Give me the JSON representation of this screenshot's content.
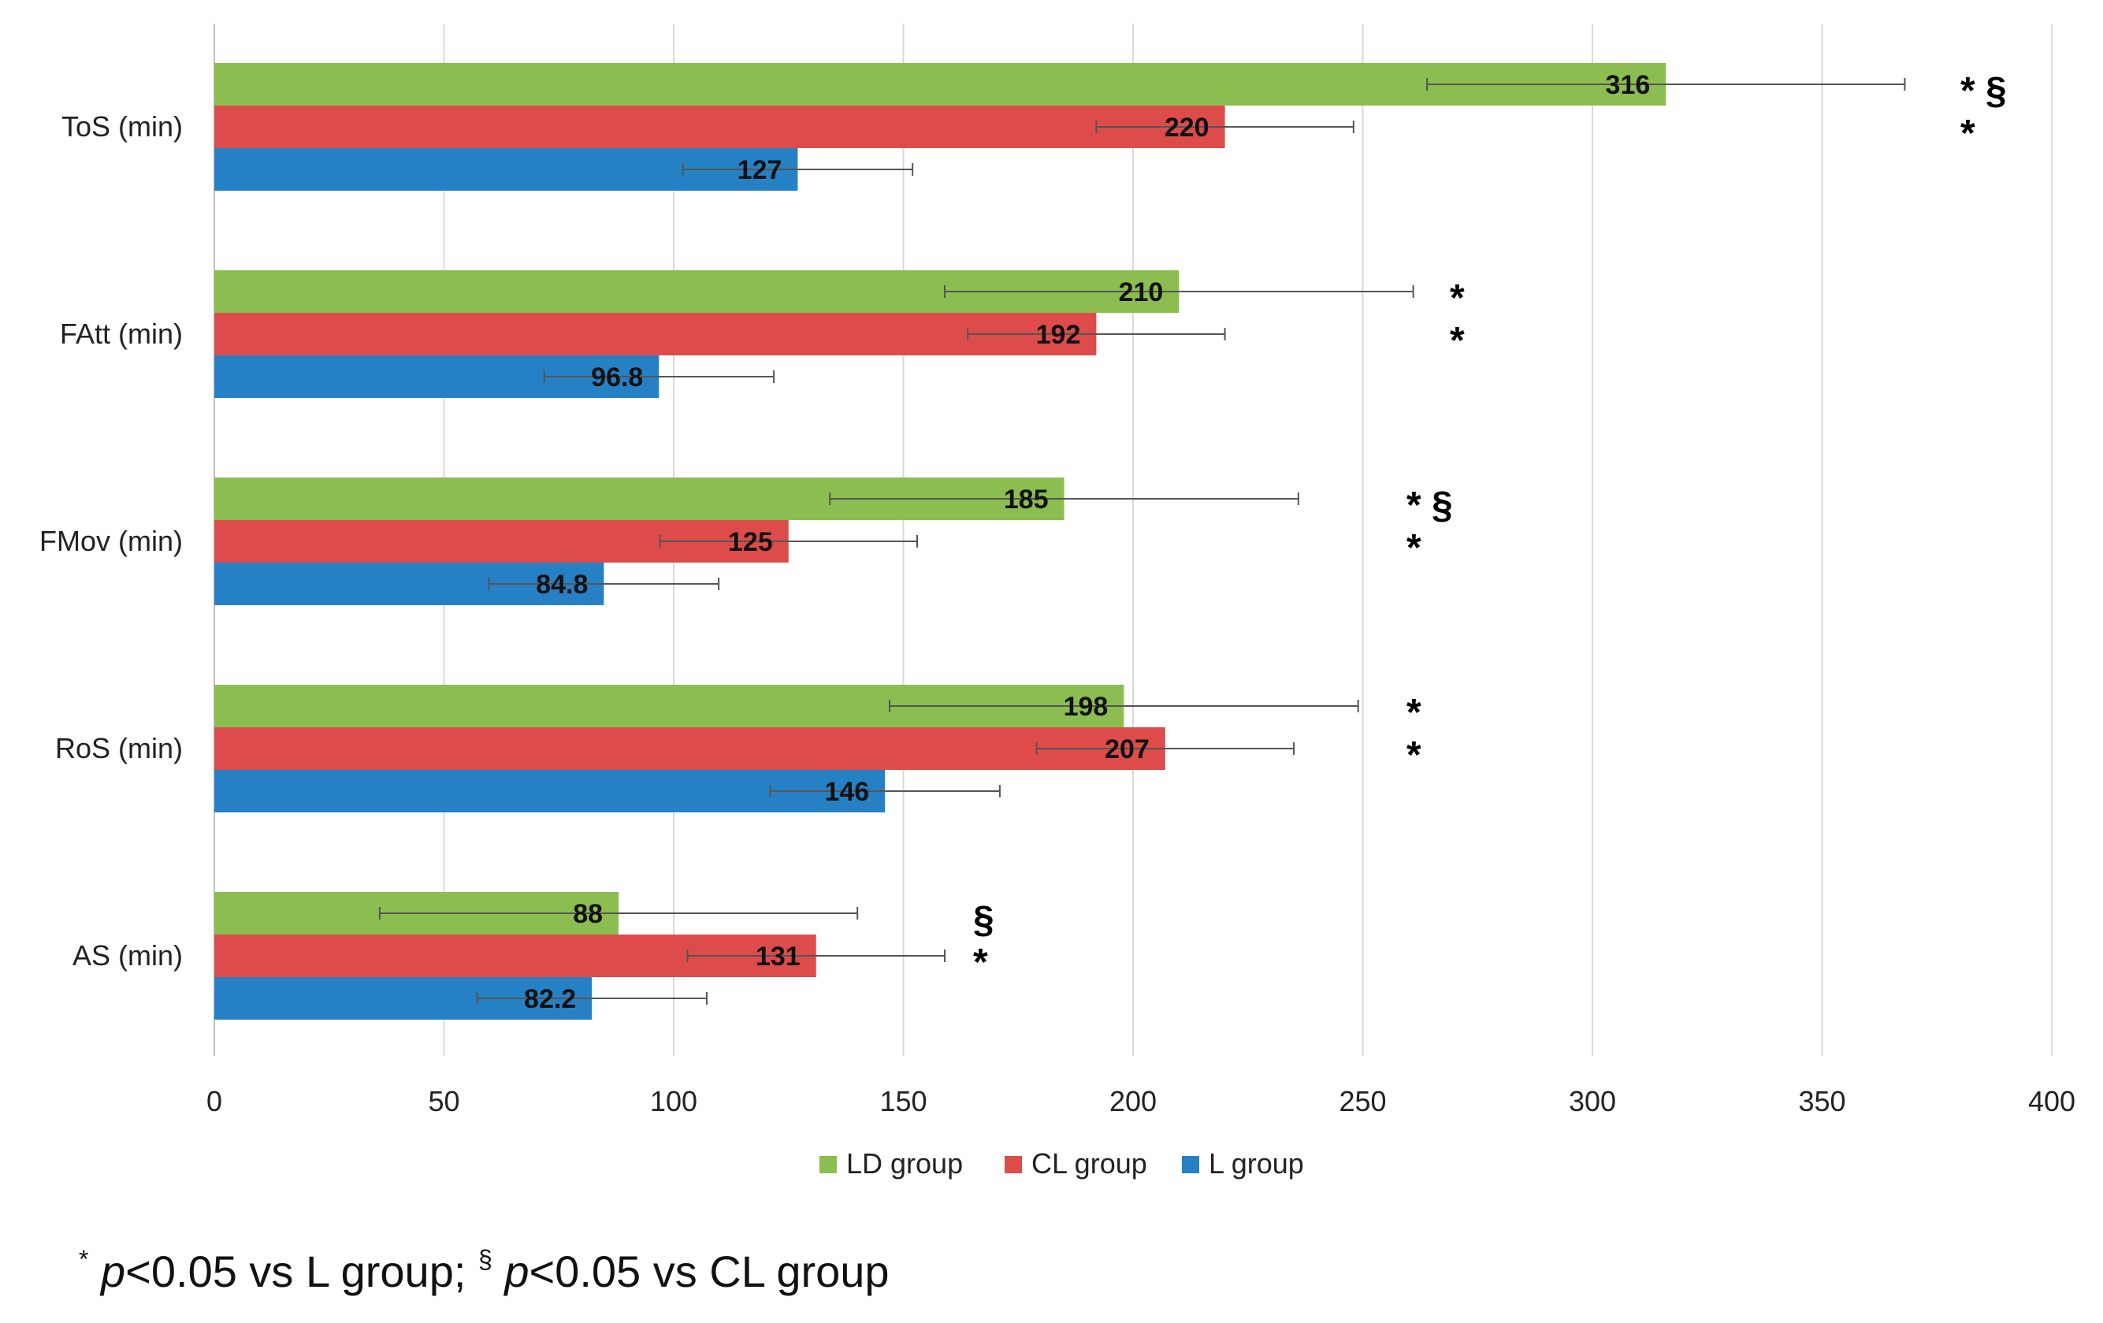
{
  "chart_data": {
    "type": "bar",
    "orientation": "horizontal",
    "categories": [
      "ToS (min)",
      "FAtt (min)",
      "FMov (min)",
      "RoS (min)",
      "AS (min)"
    ],
    "series": [
      {
        "name": "LD group",
        "color": "#8cbd50",
        "values": [
          316,
          210,
          185,
          198,
          88
        ],
        "value_labels": [
          "316",
          "210",
          "185",
          "198",
          "88"
        ],
        "error": [
          52,
          51,
          51,
          51,
          52
        ],
        "significance": [
          "* §",
          "*",
          "* §",
          "*",
          "§"
        ]
      },
      {
        "name": "CL group",
        "color": "#de4b4b",
        "values": [
          220,
          192,
          125,
          207,
          131
        ],
        "value_labels": [
          "220",
          "192",
          "125",
          "207",
          "131"
        ],
        "error": [
          28,
          28,
          28,
          28,
          28
        ],
        "significance": [
          "*",
          "*",
          "*",
          "*",
          "*"
        ]
      },
      {
        "name": "L group",
        "color": "#2681c4",
        "values": [
          127,
          96.8,
          84.8,
          146,
          82.2
        ],
        "value_labels": [
          "127",
          "96.8",
          "84.8",
          "146",
          "82.2"
        ],
        "error": [
          25,
          25,
          25,
          25,
          25
        ],
        "significance": [
          "",
          "",
          "",
          "",
          ""
        ]
      }
    ],
    "xlim": [
      0,
      400
    ],
    "xticks": [
      0,
      50,
      100,
      150,
      200,
      250,
      300,
      350,
      400
    ],
    "xtick_labels": [
      "0",
      "50",
      "100",
      "150",
      "200",
      "250",
      "300",
      "350",
      "400"
    ],
    "grid": "vertical",
    "legend_position": "bottom",
    "title": "",
    "xlabel": "",
    "ylabel": ""
  },
  "footnote": {
    "star_symbol": "*",
    "star_text": "p",
    "star_rest": "<0.05 vs L group; ",
    "section_symbol": "§",
    "section_text": "p",
    "section_rest": "<0.05 vs CL group"
  }
}
